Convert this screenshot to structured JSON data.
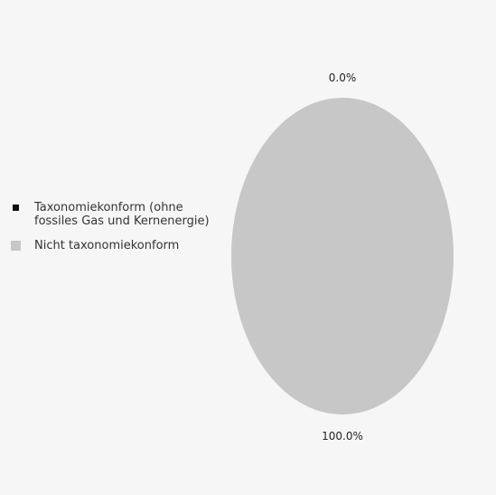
{
  "chart_data": {
    "type": "pie",
    "categories": [
      "Taxonomiekonform (ohne fossiles Gas und Kernenergie)",
      "Nicht taxonomiekonform"
    ],
    "values": [
      0.0,
      100.0
    ],
    "data_labels": [
      "0.0%",
      "100.0%"
    ],
    "colors": [
      "#111111",
      "#c7c7c7"
    ],
    "legend": {
      "placement": "left",
      "entries": [
        {
          "label": "Taxonomiekonform (ohne\nfossiles Gas und Kernenergie)",
          "color": "#111111"
        },
        {
          "label": "Nicht taxonomiekonform",
          "color": "#c7c7c7"
        }
      ]
    },
    "title": "",
    "xlabel": "",
    "ylabel": ""
  }
}
